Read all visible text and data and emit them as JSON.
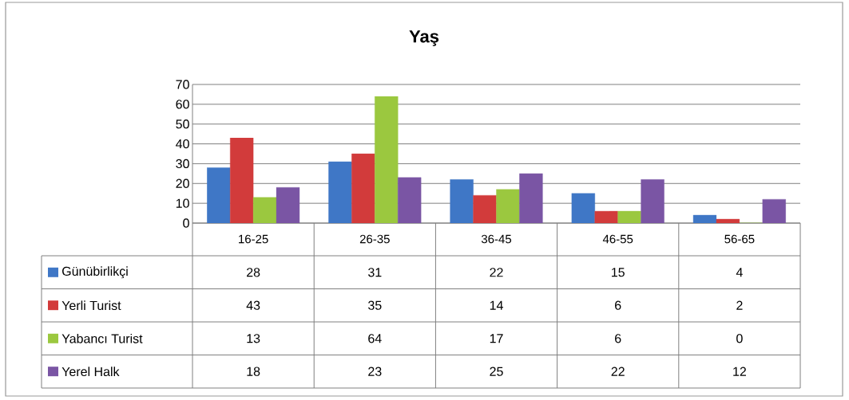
{
  "chart_data": {
    "type": "bar",
    "title": "Yaş",
    "categories": [
      "16-25",
      "26-35",
      "36-45",
      "46-55",
      "56-65"
    ],
    "series": [
      {
        "name": "Günübirlikçi",
        "color": "#3f77c6",
        "values": [
          28,
          31,
          22,
          15,
          4
        ]
      },
      {
        "name": "Yerli Turist",
        "color": "#d23b3b",
        "values": [
          43,
          35,
          14,
          6,
          2
        ]
      },
      {
        "name": "Yabancı Turist",
        "color": "#9bc83f",
        "values": [
          13,
          64,
          17,
          6,
          0
        ]
      },
      {
        "name": "Yerel Halk",
        "color": "#7a55a4",
        "values": [
          18,
          23,
          25,
          22,
          12
        ]
      }
    ],
    "ylim": [
      0,
      70
    ],
    "yticks": [
      0,
      10,
      20,
      30,
      40,
      50,
      60,
      70
    ],
    "grid": "y",
    "legend": "left",
    "data_labels": true
  }
}
